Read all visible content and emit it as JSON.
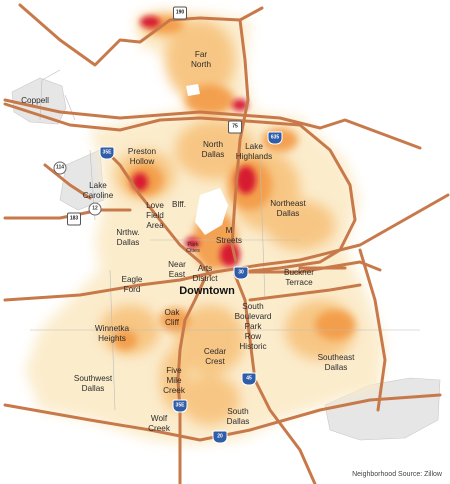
{
  "map": {
    "colors": {
      "roads": "#c8794a",
      "water": "#ffffff",
      "heat_low": "#fbeecf",
      "heat_mid": "#f6a14c",
      "heat_high": "#c9002b",
      "outside": "#e4e4e4"
    },
    "source": "Neighborhood Source: Zillow",
    "labels": {
      "coppell": "Coppell",
      "far_north": "Far\nNorth",
      "preston_hollow": "Preston\nHollow",
      "north_dallas": "North\nDallas",
      "lake_highlands": "Lake\nHighlands",
      "lake_caroline": "Lake\nCaroline",
      "northeast_dallas": "Northeast\nDallas",
      "love_field": "Love\nField\nArea",
      "bluffview": "Blff.",
      "nrthw_dallas": "Nrthw.\nDallas",
      "park_cities": "Park\nCities",
      "m_streets": "M\nStreets",
      "eagle_ford": "Eagle\nFord",
      "near_east": "Near\nEast",
      "arts_district": "Arts\nDistrict",
      "buckner_terrace": "Buckner\nTerrace",
      "downtown": "Downtown",
      "oak_cliff": "Oak\nCliff",
      "winnetka_heights": "Winnetka\nHeights",
      "south_boulevard": "South\nBoulevard\nPark\nRow\nHistoric",
      "southeast_dallas": "Southeast\nDallas",
      "southwest_dallas": "Southwest\nDallas",
      "cedar_crest": "Cedar\nCrest",
      "five_mile_creek": "Five\nMile\nCreek",
      "wolf_creek": "Wolf\nCreek",
      "south_dallas": "South\nDallas"
    },
    "shields": [
      "190",
      "75",
      "635",
      "35E",
      "114",
      "12",
      "183",
      "30",
      "45",
      "35E",
      "20"
    ]
  }
}
